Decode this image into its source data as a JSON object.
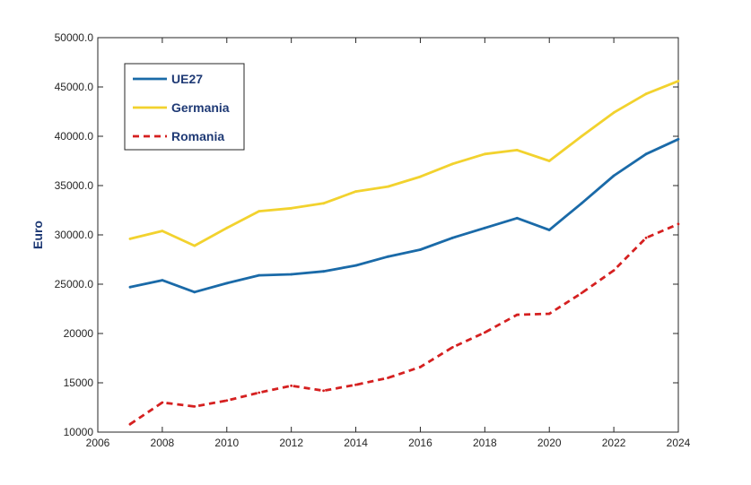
{
  "chart_data": {
    "type": "line",
    "title": "",
    "xlabel": "",
    "ylabel": "Euro",
    "xlim": [
      2006,
      2024
    ],
    "ylim": [
      10000,
      50000
    ],
    "xticks": [
      2006,
      2008,
      2010,
      2012,
      2014,
      2016,
      2018,
      2020,
      2022,
      2024
    ],
    "xtick_labels": [
      "2006",
      "2008",
      "2010",
      "2012",
      "2014",
      "2016",
      "2018",
      "2020",
      "2022",
      "2024"
    ],
    "yticks": [
      10000,
      15000,
      20000,
      25000,
      30000,
      35000,
      40000,
      45000,
      50000
    ],
    "ytick_labels": [
      "10000",
      "15000",
      "20000",
      "25000.0",
      "30000.0",
      "35000.0",
      "40000.0",
      "45000.0",
      "50000.0"
    ],
    "grid": false,
    "legend_position": "top-left",
    "x": [
      2007,
      2008,
      2009,
      2010,
      2011,
      2012,
      2013,
      2014,
      2015,
      2016,
      2017,
      2018,
      2019,
      2020,
      2021,
      2022,
      2023,
      2024
    ],
    "series": [
      {
        "name": "UE27",
        "color": "#1a6aa8",
        "style": "solid",
        "values": [
          24700,
          25400,
          24200,
          25100,
          25900,
          26000,
          26300,
          26900,
          27800,
          28500,
          29700,
          30700,
          31700,
          30500,
          33200,
          36000,
          38200,
          39700
        ]
      },
      {
        "name": "Germania",
        "color": "#f2d22e",
        "style": "solid",
        "values": [
          29600,
          30400,
          28900,
          30700,
          32400,
          32700,
          33200,
          34400,
          34900,
          35900,
          37200,
          38200,
          38600,
          37500,
          40000,
          42400,
          44300,
          45600
        ]
      },
      {
        "name": "Romania",
        "color": "#d52020",
        "style": "dashed",
        "values": [
          10800,
          13000,
          12600,
          13200,
          14000,
          14700,
          14200,
          14800,
          15500,
          16600,
          18600,
          20100,
          21900,
          22000,
          24100,
          26400,
          29700,
          31100
        ]
      }
    ]
  }
}
